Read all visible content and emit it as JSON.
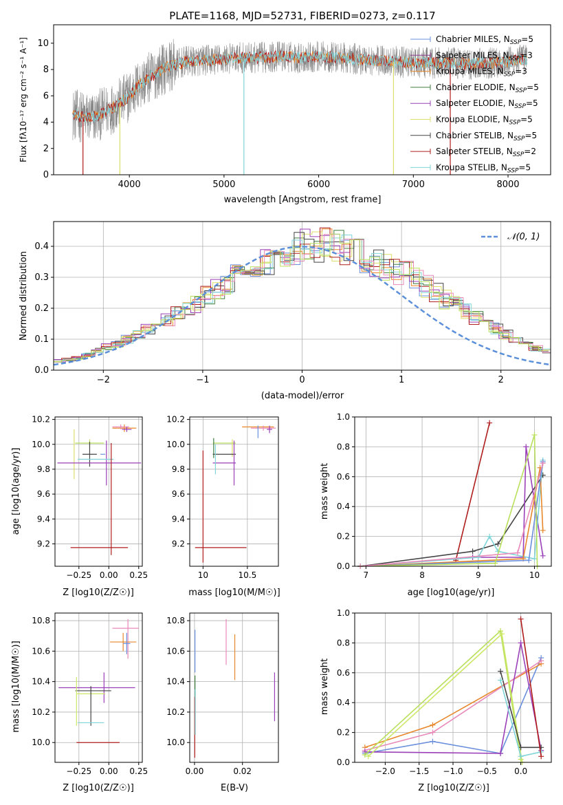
{
  "figure_title": "PLATE=1168, MJD=52731, FIBERID=0273, z=0.117",
  "colors": {
    "chabrier_miles": "#6a8fdc",
    "salpeter_miles": "#8b3a8b",
    "kroupa_miles": "#e8872a",
    "chabrier_elodie": "#3f7f3f",
    "salpeter_elodie": "#9a3fb8",
    "kroupa_elodie": "#dede6a",
    "chabrier_stelib": "#444444",
    "salpeter_stelib": "#b01c1c",
    "kroupa_stelib": "#7fd4d8",
    "pink": "#e888b8",
    "lime": "#b8e05a",
    "yellowgreen": "#cce866",
    "normal_curve": "#5b8fd9",
    "grid": "#b0b0b0"
  },
  "chart_data": [
    {
      "type": "line",
      "id": "spectrum",
      "title": "PLATE=1168, MJD=52731, FIBERID=0273, z=0.117",
      "xlabel": "wavelength [Angstrom, rest frame]",
      "ylabel": "Flux [fλ10⁻¹⁷ erg cm⁻² s⁻¹ A⁻¹]",
      "xlim": [
        3200,
        8450
      ],
      "ylim": [
        0,
        11.4
      ],
      "xticks": [
        4000,
        5000,
        6000,
        7000,
        8000
      ],
      "yticks": [
        0,
        2,
        4,
        6,
        8,
        10
      ],
      "grid": false,
      "legend_position": "right",
      "legend": [
        "Chabrier MILES, N_SSP=5",
        "Salpeter MILES, N_SSP=3",
        "Kroupa MILES, N_SSP=3",
        "Chabrier ELODIE, N_SSP=5",
        "Salpeter ELODIE, N_SSP=5",
        "Kroupa ELODIE, N_SSP=5",
        "Chabrier STELIB, N_SSP=5",
        "Salpeter STELIB, N_SSP=2",
        "Kroupa STELIB, N_SSP=5"
      ],
      "continuum_x": [
        3400,
        3500,
        3600,
        3700,
        3800,
        3900,
        4000,
        4100,
        4200,
        4300,
        4400,
        4500,
        4600,
        4800,
        5000,
        5200,
        5400,
        5600,
        5800,
        6000,
        6200,
        6400,
        6600,
        6800,
        7000,
        7200,
        7400,
        7600,
        7800,
        8000,
        8200
      ],
      "continuum_y": [
        4.6,
        4.4,
        4.3,
        4.6,
        5.0,
        5.4,
        6.0,
        6.8,
        7.3,
        7.8,
        8.2,
        8.4,
        8.6,
        8.7,
        8.8,
        8.9,
        8.9,
        9.0,
        8.9,
        9.0,
        8.9,
        8.8,
        8.7,
        8.6,
        8.5,
        8.5,
        8.5,
        8.4,
        8.5,
        8.6,
        8.8
      ],
      "dropouts": [
        3510,
        3900,
        5210,
        6790,
        7390
      ]
    },
    {
      "type": "bar",
      "id": "residuals",
      "xlabel": "(data-model)/error",
      "ylabel": "Normed distribution",
      "xlim": [
        -2.5,
        2.5
      ],
      "ylim": [
        0,
        0.48
      ],
      "xticks": [
        -2,
        -1,
        0,
        1,
        2
      ],
      "yticks": [
        0.0,
        0.1,
        0.2,
        0.3,
        0.4
      ],
      "grid": true,
      "legend_position": "top-right",
      "legend": [
        "𝒩(0, 1)"
      ],
      "bin_width": 0.1,
      "mean_distribution": [
        0.03,
        0.035,
        0.04,
        0.05,
        0.065,
        0.075,
        0.085,
        0.1,
        0.115,
        0.13,
        0.145,
        0.16,
        0.18,
        0.2,
        0.215,
        0.24,
        0.26,
        0.28,
        0.3,
        0.32,
        0.34,
        0.355,
        0.37,
        0.385,
        0.395,
        0.4,
        0.405,
        0.405,
        0.4,
        0.39,
        0.375,
        0.36,
        0.345,
        0.33,
        0.32,
        0.31,
        0.29,
        0.27,
        0.25,
        0.23,
        0.21,
        0.19,
        0.17,
        0.15,
        0.135,
        0.115,
        0.1,
        0.085,
        0.07,
        0.06
      ]
    },
    {
      "type": "scatter",
      "id": "age_vs_Z",
      "xlabel": "Z [log10(Z/Z☉)]",
      "ylabel": "age  [log10(age/yr)]",
      "xlim": [
        -0.45,
        0.28
      ],
      "ylim": [
        9.02,
        10.22
      ],
      "xticks": [
        -0.25,
        0.0,
        0.25
      ],
      "xticklabels": [
        "−0.25",
        "0.00",
        "0.25"
      ],
      "yticks": [
        9.2,
        9.4,
        9.6,
        9.8,
        10.0,
        10.2
      ],
      "grid": true
    },
    {
      "type": "scatter",
      "id": "age_vs_mass",
      "xlabel": "mass [log10(M/M☉)]",
      "xlim": [
        9.85,
        10.85
      ],
      "ylim": [
        9.02,
        10.22
      ],
      "xticks": [
        10.0,
        10.5
      ],
      "yticks": [
        9.2,
        9.4,
        9.6,
        9.8,
        10.0,
        10.2
      ],
      "grid": true
    },
    {
      "type": "line",
      "id": "weight_vs_age",
      "xlabel": "age  [log10(age/yr)]",
      "ylabel": "mass weight",
      "xlim": [
        6.8,
        10.3
      ],
      "ylim": [
        0,
        1.0
      ],
      "xticks": [
        7,
        8,
        9,
        10
      ],
      "yticks": [
        0.0,
        0.2,
        0.4,
        0.6,
        0.8,
        1.0
      ],
      "grid": true
    },
    {
      "type": "scatter",
      "id": "mass_vs_Z",
      "xlabel": "Z [log10(Z/Z☉)]",
      "ylabel": "mass [log10(M/M☉)]",
      "xlim": [
        -0.45,
        0.28
      ],
      "ylim": [
        9.87,
        10.85
      ],
      "xticks": [
        -0.25,
        0.0,
        0.25
      ],
      "xticklabels": [
        "−0.25",
        "0.00",
        "0.25"
      ],
      "yticks": [
        10.0,
        10.2,
        10.4,
        10.6,
        10.8
      ],
      "grid": true
    },
    {
      "type": "scatter",
      "id": "mass_vs_ebv",
      "xlabel": "E(B-V)",
      "xlim": [
        -0.002,
        0.035
      ],
      "ylim": [
        9.87,
        10.85
      ],
      "xticks": [
        0.0,
        0.02
      ],
      "xticklabels": [
        "0.00",
        "0.02"
      ],
      "yticks": [
        10.0,
        10.2,
        10.4,
        10.6,
        10.8
      ],
      "grid": true
    },
    {
      "type": "line",
      "id": "weight_vs_Z",
      "xlabel": "Z [log10(Z/Z☉)]",
      "ylabel": "mass weight",
      "xlim": [
        -2.45,
        0.45
      ],
      "ylim": [
        0,
        1.0
      ],
      "xticks": [
        -2.0,
        -1.5,
        -1.0,
        -0.5,
        0.0
      ],
      "xticklabels": [
        "−2.0",
        "−1.5",
        "−1.0",
        "−0.5",
        "0.0"
      ],
      "yticks": [
        0.0,
        0.2,
        0.4,
        0.6,
        0.8,
        1.0
      ],
      "grid": true
    }
  ]
}
